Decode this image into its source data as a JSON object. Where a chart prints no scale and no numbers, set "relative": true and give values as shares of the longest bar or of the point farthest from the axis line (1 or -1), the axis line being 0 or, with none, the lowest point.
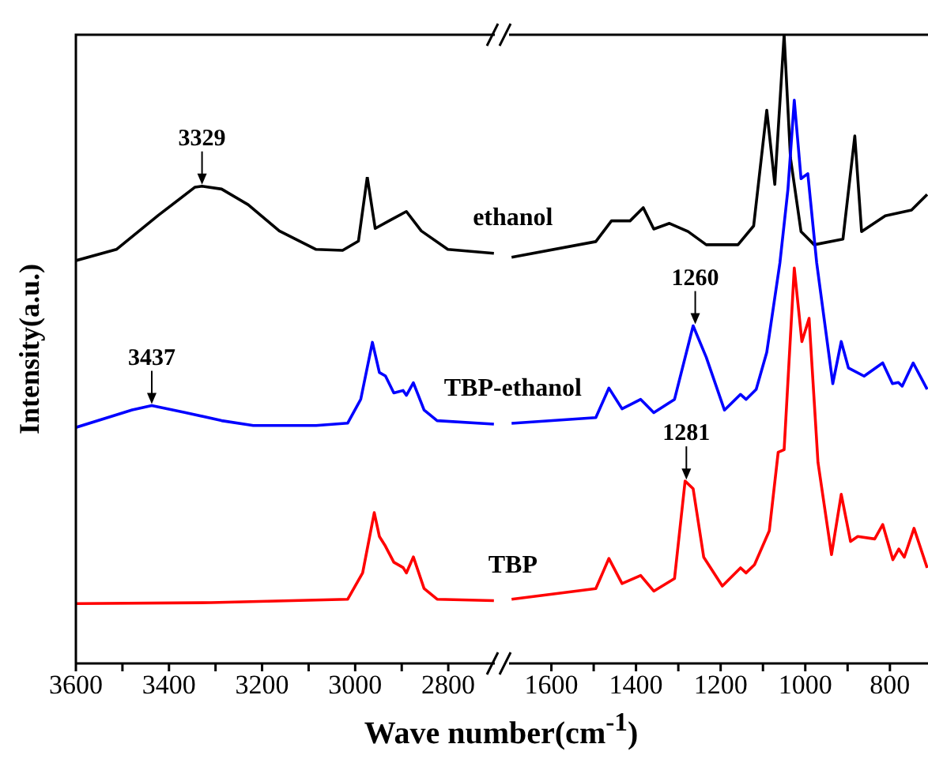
{
  "chart_data": [
    {
      "type": "line",
      "relative": true,
      "ylabel": "Intensity(a.u.)",
      "xlabel": "Wave number(cm$^{-1}$)",
      "marker": "none",
      "line_style": "solid",
      "xlim": [
        3600,
        2700
      ],
      "xticks": [
        3600,
        {
          "value": 3500,
          "label": null
        },
        3400,
        {
          "value": 3300,
          "label": null
        },
        3200,
        {
          "value": 3100,
          "label": null
        },
        3000,
        {
          "value": 2900,
          "label": null
        },
        2800
      ],
      "series": [
        {
          "name": "ethanol",
          "color": "#000000",
          "x": [
            3600,
            3513,
            3423,
            3344,
            3329,
            3287,
            3230,
            3163,
            3084,
            3027,
            2993,
            2974,
            2957,
            2925,
            2890,
            2858,
            2801,
            2702
          ],
          "values": [
            0.828,
            0.851,
            0.921,
            0.979,
            0.981,
            0.975,
            0.943,
            0.889,
            0.851,
            0.849,
            0.868,
            1.0,
            0.894,
            0.911,
            0.929,
            0.889,
            0.851,
            0.843
          ]
        },
        {
          "name": "TBP-ethanol",
          "color": "#0000ff",
          "x": [
            3600,
            3479,
            3437,
            3366,
            3287,
            3219,
            3084,
            3016,
            2988,
            2963,
            2948,
            2935,
            2917,
            2897,
            2890,
            2875,
            2852,
            2824,
            2702
          ],
          "values": [
            0.485,
            0.521,
            0.53,
            0.516,
            0.499,
            0.489,
            0.489,
            0.494,
            0.543,
            0.66,
            0.598,
            0.591,
            0.556,
            0.561,
            0.551,
            0.577,
            0.521,
            0.499,
            0.492
          ]
        },
        {
          "name": "TBP",
          "color": "#ff0000",
          "x": [
            3600,
            3310,
            3016,
            2984,
            2959,
            2948,
            2935,
            2917,
            2897,
            2890,
            2875,
            2852,
            2824,
            2702
          ],
          "values": [
            0.123,
            0.125,
            0.132,
            0.186,
            0.31,
            0.261,
            0.241,
            0.208,
            0.197,
            0.186,
            0.219,
            0.154,
            0.132,
            0.129
          ]
        }
      ],
      "annotations": [
        {
          "text": "3329",
          "x": 3329,
          "y": 0.981
        },
        {
          "text": "3437",
          "x": 3437,
          "y": 0.53
        }
      ]
    },
    {
      "type": "line",
      "relative": true,
      "marker": "none",
      "line_style": "solid",
      "xlim": [
        1700,
        710
      ],
      "xticks": [
        1600,
        {
          "value": 1500,
          "label": null
        },
        1400,
        {
          "value": 1300,
          "label": null
        },
        1200,
        {
          "value": 1100,
          "label": null
        },
        1000,
        {
          "value": 900,
          "label": null
        },
        800
      ],
      "series": [
        {
          "color": "#000000",
          "x": [
            1694,
            1495,
            1458,
            1414,
            1383,
            1358,
            1321,
            1277,
            1234,
            1159,
            1122,
            1091,
            1072,
            1050,
            1035,
            1010,
            979,
            911,
            883,
            867,
            811,
            749,
            712
          ],
          "values": [
            0.646,
            0.671,
            0.704,
            0.704,
            0.725,
            0.691,
            0.7,
            0.687,
            0.666,
            0.666,
            0.696,
            0.88,
            0.762,
            1.0,
            0.804,
            0.687,
            0.666,
            0.675,
            0.839,
            0.687,
            0.712,
            0.721,
            0.746
          ]
        },
        {
          "color": "#0000ff",
          "x": [
            1694,
            1495,
            1464,
            1433,
            1389,
            1358,
            1309,
            1265,
            1234,
            1191,
            1153,
            1140,
            1116,
            1091,
            1060,
            1041,
            1026,
            1010,
            994,
            973,
            935,
            915,
            898,
            861,
            817,
            794,
            780,
            771,
            745,
            712
          ],
          "values": [
            0.382,
            0.391,
            0.438,
            0.405,
            0.42,
            0.399,
            0.42,
            0.537,
            0.487,
            0.403,
            0.428,
            0.42,
            0.436,
            0.495,
            0.637,
            0.754,
            0.896,
            0.771,
            0.779,
            0.637,
            0.445,
            0.512,
            0.47,
            0.457,
            0.478,
            0.445,
            0.447,
            0.441,
            0.478,
            0.436
          ]
        },
        {
          "color": "#ff0000",
          "x": [
            1694,
            1495,
            1464,
            1433,
            1389,
            1358,
            1309,
            1284,
            1265,
            1240,
            1196,
            1153,
            1140,
            1120,
            1085,
            1064,
            1050,
            1026,
            1008,
            991,
            970,
            938,
            915,
            893,
            876,
            836,
            817,
            793,
            779,
            766,
            743,
            712
          ],
          "values": [
            0.102,
            0.119,
            0.167,
            0.127,
            0.14,
            0.115,
            0.135,
            0.29,
            0.278,
            0.169,
            0.123,
            0.152,
            0.144,
            0.157,
            0.211,
            0.336,
            0.34,
            0.629,
            0.512,
            0.549,
            0.32,
            0.173,
            0.269,
            0.194,
            0.202,
            0.198,
            0.221,
            0.165,
            0.182,
            0.169,
            0.215,
            0.152
          ]
        }
      ],
      "annotations": [
        {
          "text": "1260",
          "x": 1260,
          "y": 0.537
        },
        {
          "text": "1281",
          "x": 1281,
          "y": 0.29
        }
      ]
    }
  ]
}
